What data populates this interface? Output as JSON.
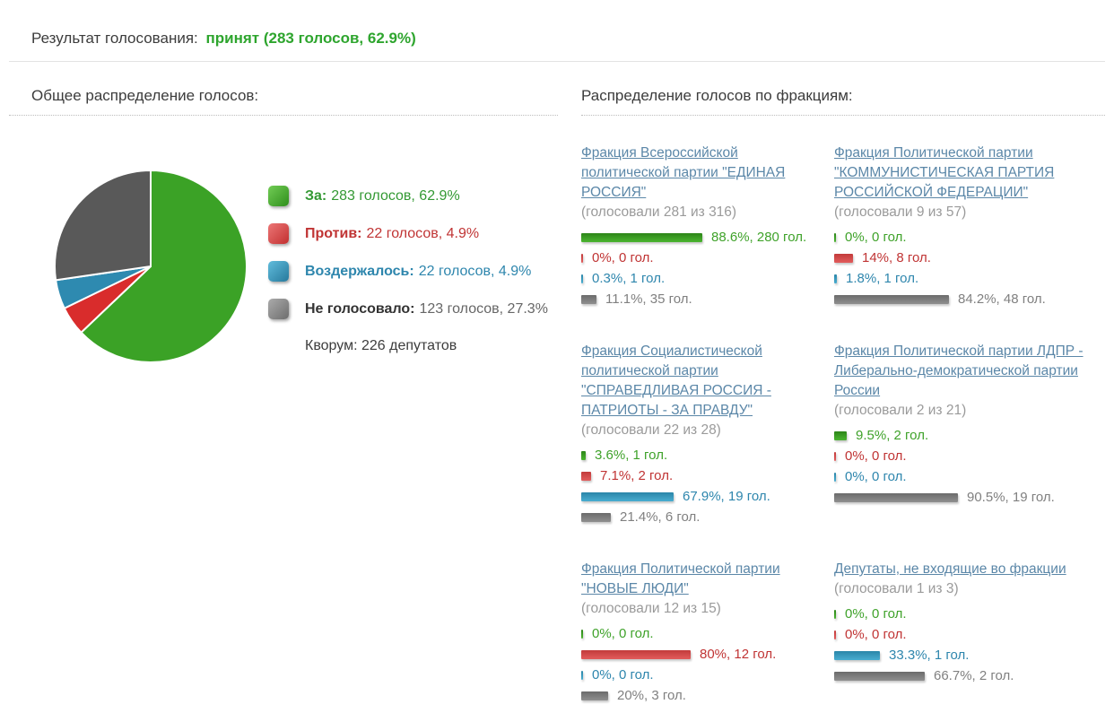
{
  "result_header": {
    "label": "Результат голосования:",
    "value": "принят (283 голосов, 62.9%)"
  },
  "left_section": {
    "title": "Общее распределение голосов:",
    "legend": [
      {
        "id": "for",
        "label": "За:",
        "value": "283 голосов, 62.9%",
        "label_color": "#339933",
        "value_color": "#339933",
        "swatch_light": "#72cc55",
        "swatch_dark": "#2f8f1c"
      },
      {
        "id": "against",
        "label": "Против:",
        "value": "22 голосов, 4.9%",
        "label_color": "#c03434",
        "value_color": "#c03434",
        "swatch_light": "#ec7676",
        "swatch_dark": "#c23030"
      },
      {
        "id": "abstained",
        "label": "Воздержалось:",
        "value": "22 голосов, 4.9%",
        "label_color": "#2e86ad",
        "value_color": "#2e86ad",
        "swatch_light": "#60bcdc",
        "swatch_dark": "#27799c"
      },
      {
        "id": "did-not-vote",
        "label": "Не голосовало:",
        "value": "123 голосов, 27.3%",
        "label_color": "#333333",
        "value_color": "#666666",
        "swatch_light": "#ababab",
        "swatch_dark": "#6d6d6d"
      }
    ],
    "quorum": "Кворум: 226 депутатов"
  },
  "right_section": {
    "title": "Распределение голосов по фракциям:",
    "bar_styles": [
      {
        "id": "for",
        "top": "#2c8518",
        "bottom": "#4cb531",
        "text": "#3fa22a"
      },
      {
        "id": "against",
        "top": "#c23b3b",
        "bottom": "#e25c5c",
        "text": "#c03434"
      },
      {
        "id": "abstained",
        "top": "#2a85a8",
        "bottom": "#49add0",
        "text": "#2e86ad"
      },
      {
        "id": "did-not-vote",
        "top": "#6b6b6b",
        "bottom": "#8f8f8f",
        "text": "#808080"
      }
    ],
    "factions": [
      {
        "name": "Фракция Всероссийской политической партии \"ЕДИНАЯ РОССИЯ\"",
        "turnout": "(голосовали 281 из 316)",
        "bars": [
          {
            "pct": 88.6,
            "label": "88.6%, 280 гол."
          },
          {
            "pct": 0,
            "label": "0%, 0 гол."
          },
          {
            "pct": 0.3,
            "label": "0.3%, 1 гол."
          },
          {
            "pct": 11.1,
            "label": "11.1%, 35 гол."
          }
        ]
      },
      {
        "name": "Фракция Политической партии \"КОММУНИСТИЧЕСКАЯ ПАРТИЯ РОССИЙСКОЙ ФЕДЕРАЦИИ\"",
        "turnout": "(голосовали 9 из 57)",
        "bars": [
          {
            "pct": 0,
            "label": "0%, 0 гол."
          },
          {
            "pct": 14,
            "label": "14%, 8 гол."
          },
          {
            "pct": 1.8,
            "label": "1.8%, 1 гол."
          },
          {
            "pct": 84.2,
            "label": "84.2%, 48 гол."
          }
        ]
      },
      {
        "name": "Фракция Социалистической политической партии \"СПРАВЕДЛИВАЯ РОССИЯ - ПАТРИОТЫ - ЗА ПРАВДУ\"",
        "turnout": "(голосовали 22 из 28)",
        "bars": [
          {
            "pct": 3.6,
            "label": "3.6%, 1 гол."
          },
          {
            "pct": 7.1,
            "label": "7.1%, 2 гол."
          },
          {
            "pct": 67.9,
            "label": "67.9%, 19 гол."
          },
          {
            "pct": 21.4,
            "label": "21.4%, 6 гол."
          }
        ]
      },
      {
        "name": "Фракция Политической партии ЛДПР - Либерально-демократической партии России",
        "turnout": "(голосовали 2 из 21)",
        "bars": [
          {
            "pct": 9.5,
            "label": "9.5%, 2 гол."
          },
          {
            "pct": 0,
            "label": "0%, 0 гол."
          },
          {
            "pct": 0,
            "label": "0%, 0 гол."
          },
          {
            "pct": 90.5,
            "label": "90.5%, 19 гол."
          }
        ]
      },
      {
        "name": "Фракция Политической партии \"НОВЫЕ ЛЮДИ\"",
        "turnout": "(голосовали 12 из 15)",
        "bars": [
          {
            "pct": 0,
            "label": "0%, 0 гол."
          },
          {
            "pct": 80,
            "label": "80%, 12 гол."
          },
          {
            "pct": 0,
            "label": "0%, 0 гол."
          },
          {
            "pct": 20,
            "label": "20%, 3 гол."
          }
        ]
      },
      {
        "name": "Депутаты, не входящие во фракции",
        "turnout": "(голосовали 1 из 3)",
        "bars": [
          {
            "pct": 0,
            "label": "0%, 0 гол."
          },
          {
            "pct": 0,
            "label": "0%, 0 гол."
          },
          {
            "pct": 33.3,
            "label": "33.3%, 1 гол."
          },
          {
            "pct": 66.7,
            "label": "66.7%, 2 гол."
          }
        ]
      }
    ]
  },
  "chart_data": [
    {
      "type": "pie",
      "title": "Общее распределение голосов",
      "labels": [
        "За",
        "Против",
        "Воздержалось",
        "Не голосовало"
      ],
      "ids": [
        "for",
        "against",
        "abstained",
        "did-not-vote"
      ],
      "values": [
        62.9,
        4.9,
        4.9,
        27.3
      ],
      "votes": [
        283,
        22,
        22,
        123
      ],
      "colors": [
        "#3ba226",
        "#d92c2c",
        "#2e8ab0",
        "#595959"
      ],
      "start_angle": "12-o-clock",
      "direction": "clockwise",
      "result": "принят",
      "quorum_deputies": 226
    },
    {
      "type": "bar",
      "title": "Распределение голосов по фракциям",
      "categories": [
        "За",
        "Против",
        "Воздержалось",
        "Не голосовало"
      ],
      "series": [
        {
          "name": "ЕДИНАЯ РОССИЯ",
          "voted": "281 из 316",
          "percent": [
            88.6,
            0,
            0.3,
            11.1
          ],
          "votes": [
            280,
            0,
            1,
            35
          ]
        },
        {
          "name": "КОММУНИСТИЧЕСКАЯ ПАРТИЯ РОССИЙСКОЙ ФЕДЕРАЦИИ",
          "voted": "9 из 57",
          "percent": [
            0,
            14,
            1.8,
            84.2
          ],
          "votes": [
            0,
            8,
            1,
            48
          ]
        },
        {
          "name": "СПРАВЕДЛИВАЯ РОССИЯ - ПАТРИОТЫ - ЗА ПРАВДУ",
          "voted": "22 из 28",
          "percent": [
            3.6,
            7.1,
            67.9,
            21.4
          ],
          "votes": [
            1,
            2,
            19,
            6
          ]
        },
        {
          "name": "ЛДПР",
          "voted": "2 из 21",
          "percent": [
            9.5,
            0,
            0,
            90.5
          ],
          "votes": [
            2,
            0,
            0,
            19
          ]
        },
        {
          "name": "НОВЫЕ ЛЮДИ",
          "voted": "12 из 15",
          "percent": [
            0,
            80,
            0,
            20
          ],
          "votes": [
            0,
            12,
            0,
            3
          ]
        },
        {
          "name": "Депутаты, не входящие во фракции",
          "voted": "1 из 3",
          "percent": [
            0,
            0,
            33.3,
            66.7
          ],
          "votes": [
            0,
            0,
            1,
            2
          ]
        }
      ]
    }
  ]
}
